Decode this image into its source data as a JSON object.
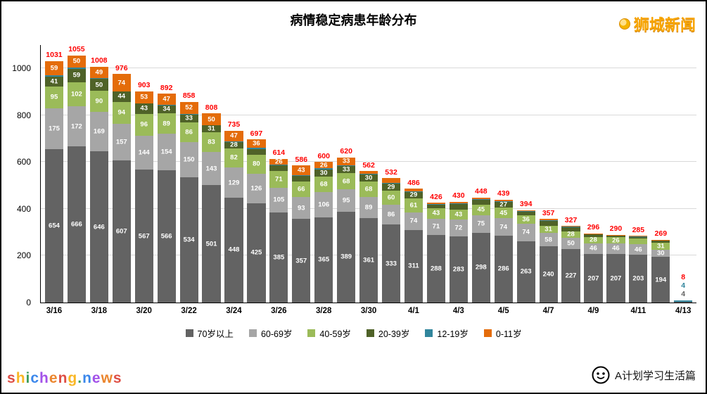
{
  "title": "病情稳定病患年龄分布",
  "brand": "狮城新闻",
  "watermark": "shicheng.news",
  "watermark_colors": [
    "#d93025",
    "#f9ab00",
    "#1e8e3e",
    "#1a73e8",
    "#9334e6",
    "#e8710a"
  ],
  "footer_brand": "A计划学习生活篇",
  "chart_data": {
    "type": "bar",
    "stacked": true,
    "title": "病情稳定病患年龄分布",
    "ylim": [
      0,
      1100
    ],
    "yticks": [
      0,
      200,
      400,
      600,
      800,
      1000
    ],
    "grid": true,
    "legend_position": "bottom",
    "total_color": "#ff0000",
    "categories": [
      "3/16",
      "3/17",
      "3/18",
      "3/19",
      "3/20",
      "3/21",
      "3/22",
      "3/23",
      "3/24",
      "3/25",
      "3/26",
      "3/27",
      "3/28",
      "3/29",
      "3/30",
      "3/31",
      "4/1",
      "4/2",
      "4/3",
      "4/4",
      "4/5",
      "4/6",
      "4/7",
      "4/8",
      "4/9",
      "4/10",
      "4/11",
      "4/12",
      "4/13"
    ],
    "x_tick_labels": [
      "3/16",
      "3/18",
      "3/20",
      "3/22",
      "3/24",
      "3/26",
      "3/28",
      "3/30",
      "4/1",
      "4/3",
      "4/5",
      "4/7",
      "4/9",
      "4/11",
      "4/13"
    ],
    "totals": [
      1031,
      1055,
      1008,
      976,
      903,
      892,
      858,
      808,
      735,
      697,
      614,
      586,
      600,
      620,
      562,
      532,
      486,
      426,
      430,
      448,
      439,
      394,
      357,
      327,
      296,
      290,
      285,
      269,
      8
    ],
    "series": [
      {
        "key": "age-70-plus",
        "name": "70岁以上",
        "color": "#636363",
        "label_color": "#ffffff",
        "values": [
          654,
          666,
          646,
          607,
          567,
          566,
          534,
          501,
          448,
          425,
          385,
          357,
          365,
          389,
          361,
          333,
          311,
          288,
          283,
          298,
          286,
          263,
          240,
          227,
          207,
          207,
          203,
          194,
          4
        ]
      },
      {
        "key": "age-60-69",
        "name": "60-69岁",
        "color": "#a6a6a6",
        "label_color": "#ffffff",
        "values": [
          175,
          172,
          169,
          157,
          144,
          154,
          150,
          143,
          129,
          126,
          105,
          93,
          106,
          95,
          89,
          86,
          74,
          71,
          72,
          75,
          74,
          74,
          58,
          50,
          46,
          46,
          46,
          30,
          0
        ]
      },
      {
        "key": "age-40-59",
        "name": "40-59岁",
        "color": "#9bbb59",
        "label_color": "#ffffff",
        "values": [
          95,
          102,
          90,
          94,
          96,
          89,
          86,
          83,
          82,
          80,
          71,
          66,
          68,
          68,
          68,
          60,
          61,
          43,
          43,
          45,
          45,
          36,
          31,
          28,
          28,
          26,
          24,
          31,
          0
        ]
      },
      {
        "key": "age-20-39",
        "name": "20-39岁",
        "color": "#4f6228",
        "label_color": "#ffffff",
        "values": [
          41,
          59,
          50,
          44,
          43,
          34,
          33,
          31,
          28,
          25,
          24,
          25,
          30,
          33,
          30,
          29,
          29,
          18,
          24,
          22,
          27,
          16,
          21,
          18,
          12,
          9,
          10,
          11,
          0
        ]
      },
      {
        "key": "age-12-19",
        "name": "12-19岁",
        "color": "#31859c",
        "label_color": "#ffffff",
        "values": [
          7,
          6,
          4,
          0,
          0,
          2,
          3,
          0,
          1,
          5,
          3,
          2,
          5,
          2,
          2,
          2,
          1,
          2,
          2,
          2,
          2,
          2,
          2,
          2,
          1,
          1,
          1,
          1,
          4
        ]
      },
      {
        "key": "age-0-11",
        "name": "0-11岁",
        "color": "#e46c0a",
        "label_color": "#ffffff",
        "values": [
          59,
          50,
          49,
          74,
          53,
          47,
          52,
          50,
          47,
          36,
          26,
          43,
          26,
          33,
          12,
          22,
          10,
          4,
          6,
          6,
          5,
          3,
          5,
          2,
          2,
          1,
          1,
          2,
          0
        ]
      }
    ]
  }
}
